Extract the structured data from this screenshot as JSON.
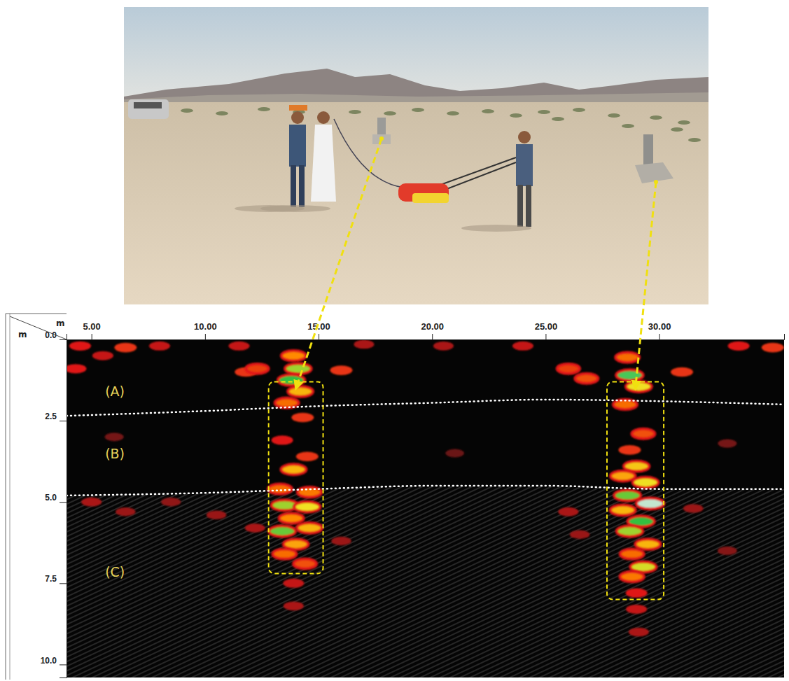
{
  "chart_data": {
    "type": "heatmap",
    "x_label": "m",
    "y_label": "m",
    "xlim": [
      3.9,
      35.5
    ],
    "ylim": [
      0,
      10.4
    ],
    "xticks": [
      {
        "value": 5,
        "label": "5.00"
      },
      {
        "value": 10,
        "label": "10.00"
      },
      {
        "value": 15,
        "label": "15.00"
      },
      {
        "value": 20,
        "label": "20.00"
      },
      {
        "value": 25,
        "label": "25.00"
      },
      {
        "value": 30,
        "label": "30.00"
      }
    ],
    "yticks": [
      {
        "value": 0,
        "label": "0.0"
      },
      2.5,
      {
        "value": 5,
        "label": "5.0"
      },
      7.5,
      {
        "value": 10,
        "label": "10.0"
      }
    ],
    "annotations": [
      {
        "text": "(A)",
        "x": 5.6,
        "depth": 1.75
      },
      {
        "text": "(B)",
        "x": 5.6,
        "depth": 3.65
      },
      {
        "text": "(C)",
        "x": 5.6,
        "depth": 7.3
      }
    ],
    "boundaries": [
      {
        "x": [
          3.9,
          10,
          15,
          20,
          25,
          30,
          35.5
        ],
        "depth": [
          2.35,
          2.2,
          2.05,
          1.95,
          1.85,
          1.9,
          2.0
        ]
      },
      {
        "x": [
          3.9,
          10,
          15,
          20,
          25,
          30,
          35.5
        ],
        "depth": [
          4.8,
          4.72,
          4.6,
          4.5,
          4.5,
          4.6,
          4.6
        ]
      }
    ],
    "anomalies": [
      {
        "x": [
          12.8,
          15.2
        ],
        "depth": [
          1.3,
          7.2
        ]
      },
      {
        "x": [
          27.7,
          30.2
        ],
        "depth": [
          1.3,
          8.0
        ]
      }
    ],
    "reflectors": {
      "x": [
        4.5,
        6.5,
        8.0,
        11.5,
        17.0,
        20.5,
        24.0,
        33.5,
        35.0,
        11.8,
        12.3,
        16.0,
        26.0,
        26.8,
        31.0,
        4.3,
        5.5,
        13.9,
        14.1,
        13.8,
        14.2,
        13.6,
        14.3,
        13.4,
        14.5,
        13.9,
        13.3,
        14.6,
        13.5,
        14.5,
        13.8,
        13.4,
        14.6,
        14.0,
        13.5,
        14.4,
        13.9,
        13.9,
        28.6,
        28.7,
        29.1,
        28.5,
        29.3,
        28.7,
        29.0,
        28.4,
        29.4,
        28.6,
        29.6,
        28.4,
        29.2,
        28.7,
        29.5,
        28.8,
        29.3,
        28.8,
        29.0,
        29.0,
        29.1,
        5.0,
        6.5,
        8.5,
        10.5,
        26.0,
        26.5,
        31.5,
        33.0,
        12.2,
        16.0,
        6.0,
        21.0,
        33.0
      ],
      "depth": [
        0.2,
        0.25,
        0.2,
        0.2,
        0.15,
        0.2,
        0.2,
        0.2,
        0.25,
        1.0,
        0.9,
        0.95,
        0.9,
        1.2,
        1.0,
        0.9,
        0.5,
        0.5,
        0.9,
        1.25,
        1.6,
        1.95,
        2.4,
        3.1,
        3.6,
        4.0,
        4.6,
        4.7,
        5.1,
        5.15,
        5.5,
        5.9,
        5.8,
        6.3,
        6.6,
        6.9,
        7.5,
        8.2,
        0.55,
        1.1,
        1.45,
        2.0,
        2.9,
        3.4,
        3.9,
        4.2,
        4.4,
        4.8,
        5.05,
        5.25,
        5.6,
        5.9,
        6.3,
        6.6,
        7.0,
        7.3,
        7.8,
        8.3,
        9.0,
        5.0,
        5.3,
        5.0,
        5.4,
        5.3,
        6.0,
        5.2,
        6.5,
        5.8,
        6.2,
        3.0,
        3.5,
        3.2
      ],
      "amplitude": [
        0.55,
        0.6,
        0.5,
        0.5,
        0.45,
        0.45,
        0.5,
        0.55,
        0.6,
        0.6,
        0.62,
        0.6,
        0.62,
        0.65,
        0.6,
        0.55,
        0.5,
        0.75,
        0.88,
        0.92,
        0.8,
        0.7,
        0.6,
        0.55,
        0.6,
        0.8,
        0.7,
        0.72,
        0.88,
        0.85,
        0.75,
        0.9,
        0.8,
        0.78,
        0.7,
        0.65,
        0.5,
        0.45,
        0.7,
        0.93,
        0.85,
        0.7,
        0.65,
        0.6,
        0.82,
        0.78,
        0.85,
        0.9,
        0.98,
        0.8,
        0.92,
        0.88,
        0.8,
        0.7,
        0.86,
        0.72,
        0.55,
        0.5,
        0.45,
        0.45,
        0.42,
        0.4,
        0.42,
        0.45,
        0.42,
        0.42,
        0.38,
        0.45,
        0.42,
        0.35,
        0.33,
        0.35
      ]
    }
  }
}
